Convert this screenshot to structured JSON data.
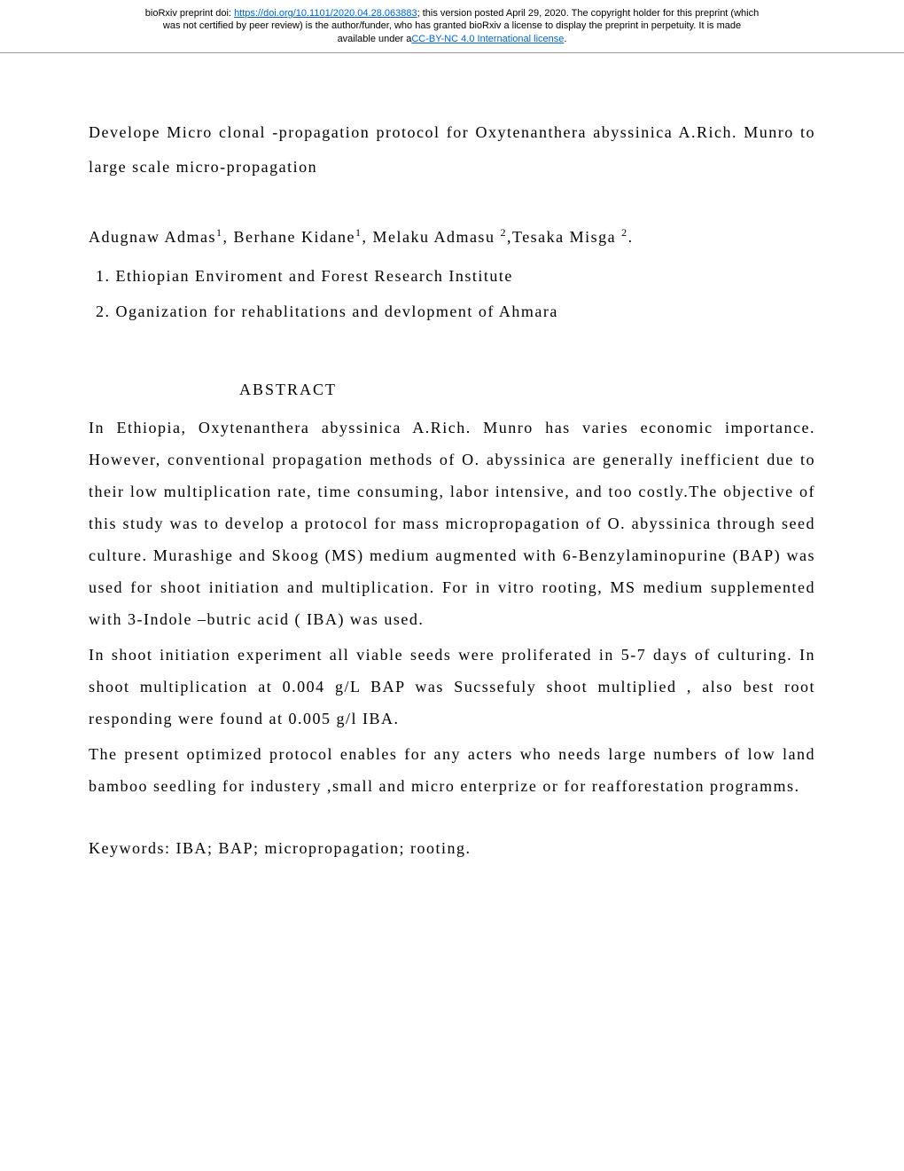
{
  "header": {
    "line1_prefix": "bioRxiv preprint doi: ",
    "doi_url": "https://doi.org/10.1101/2020.04.28.063883",
    "line1_suffix": "; this version posted April 29, 2020. The copyright holder for this preprint (which",
    "line2": "was not certified by peer review) is the author/funder, who has granted bioRxiv a license to display the preprint in perpetuity. It is made",
    "line3_prefix": "available under a",
    "license_text": "CC-BY-NC 4.0 International license",
    "line3_suffix": "."
  },
  "title": " Develope   Micro clonal -propagation protocol   for   Oxytenanthera abyssinica A.Rich. Munro  to   large scale micro-propagation",
  "authors": "Adugnaw Admas",
  "authors_sup1": "1",
  "authors_mid1": ",  Berhane Kidane",
  "authors_sup2": "1",
  "authors_mid2": ", Melaku Admasu ",
  "authors_sup3": "2",
  "authors_mid3": ",Tesaka Misga ",
  "authors_sup4": "2",
  "authors_end": ".",
  "affiliations": [
    "1. Ethiopian Enviroment and Forest Research Institute",
    "2. Oganization for rehablitations and devlopment  of Ahmara"
  ],
  "abstract_heading": "ABSTRACT",
  "abstract_paragraphs": [
    "In Ethiopia, Oxytenanthera abyssinica A.Rich. Munro   has varies economic importance. However, conventional propagation methods of O. abyssinica are generally inefficient due to their low multiplication rate, time consuming, labor intensive, and too costly.The objective of this study was to develop a protocol for mass micropropagation of  O. abyssinica through seed culture. Murashige and Skoog (MS)  medium   augmented with  6-Benzylaminopurine  (BAP)  was used for shoot initiation and multiplication. For in vitro rooting, MS medium supplemented with 3-Indole –butric acid ( IBA)   was used.",
    "In shoot initiation experiment all viable seeds were proliferated in 5-7 days of culturing. In shoot   multiplication at  0.004 g/L   BAP was Sucssefuly shoot multiplied , also best root responding were   found at 0.005 g/l IBA.",
    "The  present  optimized  protocol  enables  for    any  acters  who  needs   large numbers  of    low  land  bamboo  seedling  for  industery   ,small  and  micro enterprize or  for reafforestation programms."
  ],
  "keywords": "Keywords: IBA; BAP; micropropagation; rooting."
}
